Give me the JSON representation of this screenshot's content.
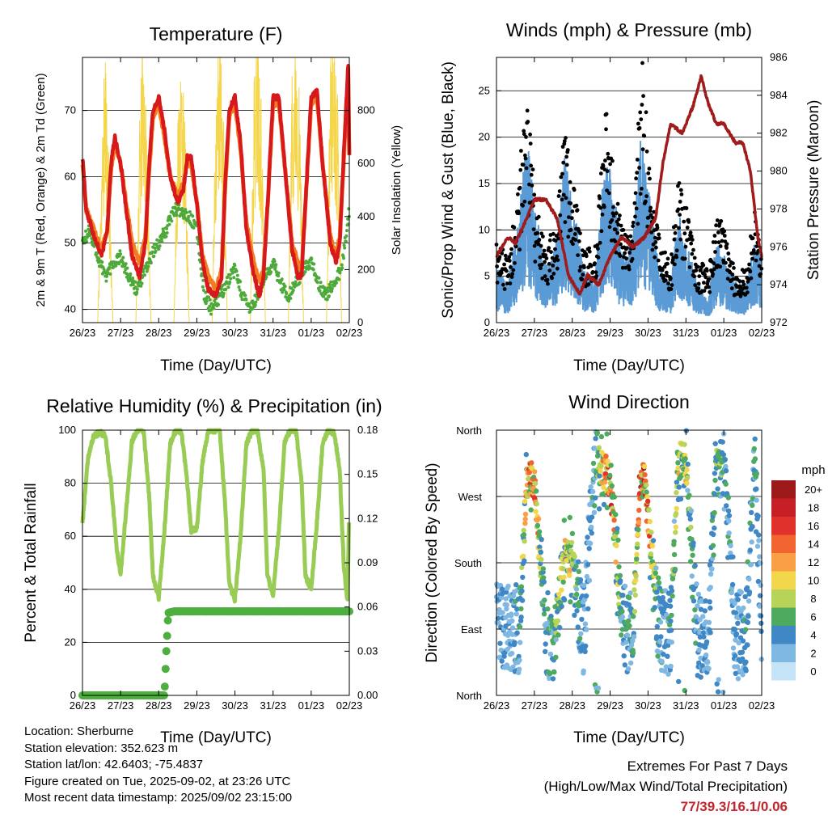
{
  "x_ticks": [
    "26/23",
    "27/23",
    "28/23",
    "29/23",
    "30/23",
    "31/23",
    "01/23",
    "02/23"
  ],
  "time_label": "Time (Day/UTC)",
  "colors": {
    "temp_2m": "#d7191c",
    "temp_9m": "#f47c20",
    "dewpoint": "#4daa3a",
    "solar": "#f5d54a",
    "wind": "#5b9bd5",
    "gust": "#000000",
    "pressure": "#a01c1c",
    "rh": "#99cc55",
    "rain": "#4daf40",
    "extremes": "#c0272d"
  },
  "temperature": {
    "title": "Temperature (F)",
    "ylabel": "2m & 9m T (Red, Orange) & 2m Td (Green)",
    "y2label": "Solar Insolation (Yellow)",
    "yticks": [
      "40",
      "50",
      "60",
      "70"
    ],
    "y2ticks": [
      "0",
      "200",
      "400",
      "600",
      "800"
    ]
  },
  "winds": {
    "title": "Winds (mph) & Pressure (mb)",
    "ylabel": "Sonic/Prop Wind & Gust (Blue, Black)",
    "y2label": "Station Pressure (Maroon)",
    "yticks": [
      "0",
      "5",
      "10",
      "15",
      "20",
      "25"
    ],
    "y2ticks": [
      "972",
      "974",
      "976",
      "978",
      "980",
      "982",
      "984",
      "986"
    ]
  },
  "humidity": {
    "title": "Relative Humidity (%) & Precipitation (in)",
    "ylabel": "Percent & Total Rainfall",
    "yticks": [
      "0",
      "20",
      "40",
      "60",
      "80",
      "100"
    ],
    "y2ticks": [
      "0.00",
      "0.03",
      "0.06",
      "0.09",
      "0.12",
      "0.15",
      "0.18"
    ]
  },
  "direction": {
    "title": "Wind Direction",
    "ylabel": "Direction (Colored By Speed)",
    "yticks": [
      "North",
      "East",
      "South",
      "West",
      "North"
    ],
    "legend_title": "mph",
    "legend_labels": [
      "20+",
      "18",
      "16",
      "14",
      "12",
      "10",
      "8",
      "6",
      "4",
      "2",
      "0"
    ],
    "legend_colors": [
      "#9e1a1a",
      "#c62026",
      "#e0322b",
      "#f26430",
      "#f9a046",
      "#f2d64b",
      "#b8d458",
      "#4eaa5e",
      "#3f88c5",
      "#7fb8e3",
      "#c6e4f7"
    ]
  },
  "footer": {
    "location": "Location: Sherburne",
    "elevation": "Station elevation: 352.623 m",
    "latlon": "Station lat/lon: 42.6403; -75.4837",
    "created": "Figure created on Tue, 2025-09-02, at 23:26 UTC",
    "recent": "Most recent data timestamp: 2025/09/02 23:15:00",
    "extremes_title": "Extremes For Past 7 Days",
    "extremes_sub": "(High/Low/Max Wind/Total Precipitation)",
    "extremes_values": "77/39.3/16.1/0.06"
  },
  "chart_data": [
    {
      "type": "line",
      "title": "Temperature (F)",
      "xlabel": "Time (Day/UTC)",
      "ylabel": "2m & 9m T (Red, Orange) & 2m Td (Green)",
      "y2label": "Solar Insolation (Yellow)",
      "x_range_days": [
        0,
        7
      ],
      "ylim": [
        38,
        78
      ],
      "y2lim": [
        0,
        1000
      ],
      "grid": true,
      "series": [
        {
          "name": "2m T",
          "axis": "left",
          "x": [
            0,
            0.1,
            0.3,
            0.5,
            0.65,
            0.75,
            0.85,
            1.0,
            1.15,
            1.3,
            1.5,
            1.65,
            1.75,
            1.85,
            2.0,
            2.15,
            2.3,
            2.5,
            2.65,
            2.75,
            2.85,
            3.0,
            3.15,
            3.3,
            3.5,
            3.65,
            3.75,
            3.85,
            4.0,
            4.15,
            4.3,
            4.5,
            4.65,
            4.75,
            4.85,
            5.0,
            5.15,
            5.3,
            5.5,
            5.65,
            5.75,
            5.85,
            6.0,
            6.15,
            6.3,
            6.5,
            6.65,
            6.75,
            6.85,
            6.97,
            7.0
          ],
          "y": [
            63,
            55,
            51,
            48,
            52,
            62,
            66,
            62,
            55,
            48,
            45,
            50,
            62,
            70,
            72,
            67,
            60,
            56,
            58,
            63,
            63,
            56,
            47,
            43,
            42,
            45,
            60,
            70,
            72,
            65,
            52,
            45,
            42,
            45,
            55,
            72,
            72,
            62,
            49,
            45,
            45,
            56,
            72,
            73,
            62,
            50,
            47,
            50,
            63,
            77,
            63
          ]
        },
        {
          "name": "9m T",
          "axis": "left",
          "x": [
            0,
            0.1,
            0.3,
            0.5,
            0.65,
            0.75,
            0.85,
            1.0,
            1.15,
            1.3,
            1.5,
            1.65,
            1.75,
            1.85,
            2.0,
            2.15,
            2.3,
            2.5,
            2.65,
            2.75,
            2.85,
            3.0,
            3.15,
            3.3,
            3.5,
            3.65,
            3.75,
            3.85,
            4.0,
            4.15,
            4.3,
            4.5,
            4.65,
            4.75,
            4.85,
            5.0,
            5.15,
            5.3,
            5.5,
            5.65,
            5.75,
            5.85,
            6.0,
            6.15,
            6.3,
            6.5,
            6.65,
            6.75,
            6.85,
            6.97,
            7.0
          ],
          "y": [
            62,
            55,
            52,
            49,
            52,
            61,
            65,
            62,
            56,
            50,
            47,
            51,
            61,
            69,
            71,
            66,
            60,
            57,
            59,
            62,
            62,
            56,
            48,
            45,
            43,
            46,
            59,
            69,
            71,
            64,
            53,
            47,
            44,
            46,
            55,
            71,
            71,
            62,
            50,
            47,
            46,
            56,
            71,
            72,
            62,
            51,
            48,
            51,
            62,
            76,
            63
          ]
        },
        {
          "name": "2m Td",
          "axis": "left",
          "x": [
            0,
            0.2,
            0.4,
            0.6,
            0.8,
            1.0,
            1.2,
            1.4,
            1.6,
            1.8,
            2.0,
            2.2,
            2.4,
            2.6,
            2.8,
            3.0,
            3.2,
            3.4,
            3.6,
            3.8,
            4.0,
            4.2,
            4.4,
            4.6,
            4.8,
            5.0,
            5.2,
            5.4,
            5.6,
            5.8,
            6.0,
            6.2,
            6.4,
            6.6,
            6.8,
            7.0
          ],
          "y": [
            50,
            52,
            48,
            45,
            47,
            48,
            45,
            43,
            45,
            48,
            50,
            52,
            55,
            55,
            54,
            52,
            42,
            40,
            42,
            44,
            46,
            42,
            40,
            42,
            45,
            47,
            44,
            42,
            44,
            46,
            47,
            44,
            42,
            44,
            46,
            55
          ]
        },
        {
          "name": "Solar Insolation",
          "axis": "right",
          "x": [
            0.4,
            0.5,
            0.6,
            0.7,
            0.8,
            1.4,
            1.5,
            1.6,
            1.7,
            1.8,
            2.4,
            2.5,
            2.6,
            2.7,
            2.8,
            3.4,
            3.5,
            3.6,
            3.7,
            3.8,
            4.4,
            4.5,
            4.6,
            4.7,
            4.8,
            5.4,
            5.5,
            5.6,
            5.7,
            5.8,
            6.4,
            6.5,
            6.6,
            6.7,
            6.8
          ],
          "y": [
            0,
            550,
            900,
            500,
            0,
            0,
            650,
            950,
            550,
            0,
            0,
            700,
            850,
            600,
            0,
            0,
            750,
            950,
            650,
            0,
            0,
            800,
            980,
            700,
            0,
            0,
            820,
            960,
            700,
            0,
            0,
            850,
            980,
            720,
            0
          ]
        }
      ]
    },
    {
      "type": "scatter",
      "title": "Winds (mph) & Pressure (mb)",
      "xlabel": "Time (Day/UTC)",
      "ylabel": "Sonic/Prop Wind & Gust (Blue, Black)",
      "y2label": "Station Pressure (Maroon)",
      "x_range_days": [
        0,
        7
      ],
      "ylim": [
        0,
        28.6
      ],
      "y2lim": [
        972,
        986
      ],
      "grid": true,
      "series": [
        {
          "name": "Sonic/Prop Wind",
          "axis": "left",
          "x": [
            0,
            0.3,
            0.6,
            0.8,
            1.0,
            1.3,
            1.6,
            1.8,
            2.0,
            2.3,
            2.6,
            2.8,
            3.0,
            3.3,
            3.6,
            3.8,
            4.0,
            4.3,
            4.6,
            4.8,
            5.0,
            5.3,
            5.6,
            5.8,
            6.0,
            6.3,
            6.6,
            6.8,
            7.0
          ],
          "y": [
            4,
            3,
            8,
            14,
            9,
            4,
            6,
            12,
            9,
            4,
            3,
            10,
            12,
            5,
            6,
            14,
            10,
            4,
            3,
            8,
            6,
            3,
            2,
            6,
            5,
            3,
            3,
            6,
            5
          ]
        },
        {
          "name": "Gust",
          "axis": "left",
          "x": [
            0,
            0.3,
            0.6,
            0.75,
            0.9,
            1.0,
            1.3,
            1.6,
            1.8,
            2.0,
            2.3,
            2.6,
            2.8,
            2.9,
            3.0,
            3.3,
            3.6,
            3.75,
            3.85,
            4.0,
            4.3,
            4.6,
            4.8,
            5.0,
            5.3,
            5.6,
            5.8,
            6.0,
            6.3,
            6.6,
            6.8,
            7.0
          ],
          "y": [
            8,
            6,
            13,
            24,
            18,
            12,
            7,
            10,
            19,
            14,
            7,
            7,
            16,
            25,
            17,
            9,
            10,
            20,
            27,
            16,
            8,
            6,
            14,
            11,
            6,
            5,
            11,
            9,
            5,
            5,
            11,
            8
          ]
        },
        {
          "name": "Station Pressure",
          "axis": "right",
          "x": [
            0,
            0.3,
            0.5,
            0.8,
            1.0,
            1.3,
            1.6,
            1.9,
            2.2,
            2.4,
            2.7,
            3.0,
            3.3,
            3.6,
            3.9,
            4.2,
            4.4,
            4.6,
            4.9,
            5.2,
            5.4,
            5.6,
            5.8,
            6.0,
            6.3,
            6.5,
            6.7,
            6.9,
            7.0
          ],
          "y": [
            975.5,
            976.5,
            976.2,
            977.5,
            978.5,
            978.5,
            977.5,
            974.5,
            973.5,
            974.5,
            974,
            975.5,
            976.5,
            976,
            976.5,
            977.5,
            980.5,
            982.5,
            982,
            983.5,
            985,
            983.5,
            982.5,
            982.5,
            981.5,
            981.5,
            980,
            976.5,
            975.5
          ]
        }
      ]
    },
    {
      "type": "line",
      "title": "Relative Humidity (%) & Precipitation (in)",
      "xlabel": "Time (Day/UTC)",
      "ylabel": "Percent & Total Rainfall",
      "x_range_days": [
        0,
        7
      ],
      "ylim": [
        0,
        100
      ],
      "y2lim": [
        0,
        0.18
      ],
      "grid": true,
      "series": [
        {
          "name": "Relative Humidity",
          "axis": "left",
          "x": [
            0,
            0.15,
            0.3,
            0.45,
            0.6,
            0.75,
            0.9,
            1.0,
            1.15,
            1.3,
            1.45,
            1.6,
            1.75,
            1.85,
            2.0,
            2.15,
            2.3,
            2.45,
            2.6,
            2.75,
            2.85,
            3.0,
            3.15,
            3.3,
            3.45,
            3.6,
            3.75,
            3.85,
            4.0,
            4.15,
            4.3,
            4.45,
            4.6,
            4.75,
            4.85,
            5.0,
            5.15,
            5.3,
            5.45,
            5.6,
            5.75,
            5.85,
            6.0,
            6.15,
            6.3,
            6.45,
            6.6,
            6.75,
            6.85,
            6.95,
            7.0
          ],
          "y": [
            65,
            90,
            98,
            99,
            98,
            80,
            55,
            46,
            70,
            96,
            100,
            100,
            75,
            45,
            37,
            62,
            95,
            100,
            99,
            80,
            62,
            63,
            88,
            100,
            100,
            100,
            70,
            42,
            36,
            60,
            95,
            100,
            99,
            85,
            45,
            38,
            62,
            95,
            100,
            100,
            80,
            45,
            40,
            65,
            95,
            100,
            99,
            85,
            50,
            35,
            72
          ]
        },
        {
          "name": "Total Rainfall",
          "axis": "right",
          "x": [
            0,
            1.5,
            2.15,
            2.2,
            2.25,
            2.4,
            3.0,
            4.0,
            5.0,
            6.0,
            7.0
          ],
          "y": [
            0,
            0,
            0,
            0.03,
            0.056,
            0.057,
            0.057,
            0.057,
            0.057,
            0.057,
            0.057
          ]
        }
      ]
    },
    {
      "type": "scatter",
      "title": "Wind Direction",
      "xlabel": "Time (Day/UTC)",
      "ylabel": "Direction (Colored By Speed)",
      "x_range_days": [
        0,
        7
      ],
      "y_categories": [
        "North",
        "East",
        "South",
        "West",
        "North"
      ],
      "ylim_degrees": [
        0,
        360
      ],
      "colorbar": {
        "title": "mph",
        "labels": [
          "20+",
          "18",
          "16",
          "14",
          "12",
          "10",
          "8",
          "6",
          "4",
          "2",
          "0"
        ]
      },
      "series": [
        {
          "name": "Wind Direction",
          "x": [
            0.3,
            0.6,
            0.8,
            1.0,
            1.3,
            1.5,
            1.8,
            2.0,
            2.3,
            2.6,
            2.9,
            3.0,
            3.3,
            3.6,
            3.8,
            3.9,
            4.3,
            4.6,
            4.8,
            5.0,
            5.3,
            5.6,
            5.8,
            6.0,
            6.3,
            6.6,
            6.8,
            7.0
          ],
          "y": [
            95,
            90,
            295,
            290,
            85,
            80,
            190,
            185,
            85,
            320,
            300,
            295,
            90,
            85,
            300,
            295,
            90,
            85,
            320,
            315,
            85,
            80,
            330,
            320,
            80,
            85,
            330,
            95
          ],
          "speed_mph": [
            3,
            4,
            11,
            12,
            4,
            5,
            9,
            8,
            3,
            4,
            12,
            14,
            4,
            5,
            14,
            15,
            4,
            4,
            9,
            8,
            4,
            3,
            6,
            5,
            3,
            4,
            5,
            3
          ]
        }
      ]
    }
  ]
}
